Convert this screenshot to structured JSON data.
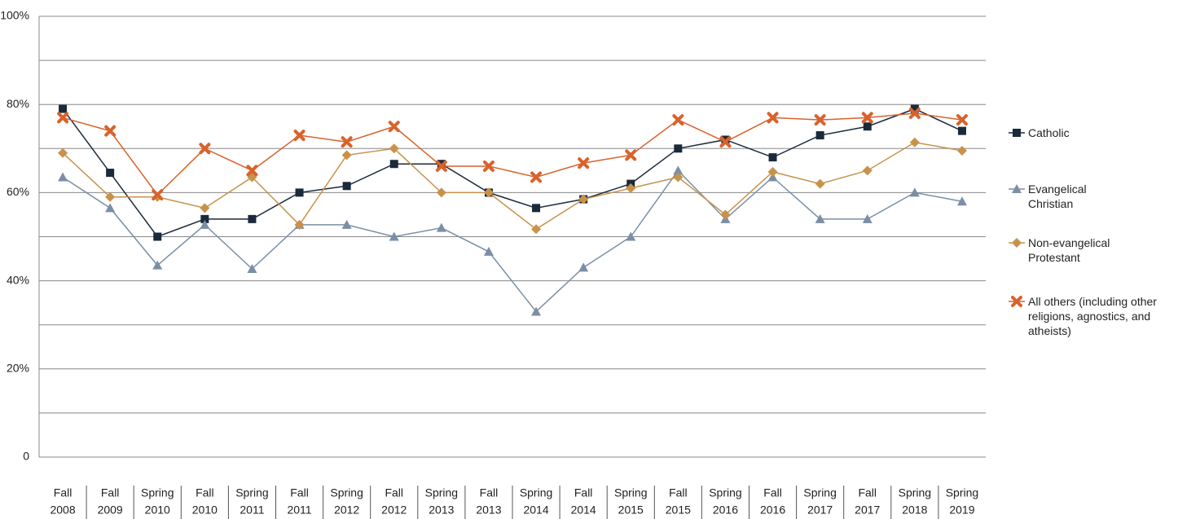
{
  "chart_data": {
    "type": "line",
    "categories": [
      [
        "Fall",
        "2008"
      ],
      [
        "Fall",
        "2009"
      ],
      [
        "Spring",
        "2010"
      ],
      [
        "Fall",
        "2010"
      ],
      [
        "Spring",
        "2011"
      ],
      [
        "Fall",
        "2011"
      ],
      [
        "Spring",
        "2012"
      ],
      [
        "Fall",
        "2012"
      ],
      [
        "Spring",
        "2013"
      ],
      [
        "Fall",
        "2013"
      ],
      [
        "Spring",
        "2014"
      ],
      [
        "Fall",
        "2014"
      ],
      [
        "Spring",
        "2015"
      ],
      [
        "Fall",
        "2015"
      ],
      [
        "Spring",
        "2016"
      ],
      [
        "Fall",
        "2016"
      ],
      [
        "Spring",
        "2017"
      ],
      [
        "Fall",
        "2017"
      ],
      [
        "Spring",
        "2018"
      ],
      [
        "Spring",
        "2019"
      ]
    ],
    "series": [
      {
        "name": "Catholic",
        "color": "#1b2a3a",
        "marker": "square",
        "values": [
          79,
          64.5,
          50,
          54,
          54,
          60,
          61.5,
          66.5,
          66.5,
          60,
          56.5,
          58.5,
          62,
          70,
          72,
          68,
          73,
          75,
          79,
          74
        ]
      },
      {
        "name": "Evangelical Christian",
        "color": "#7a8fa6",
        "marker": "triangle",
        "values": [
          63.5,
          56.5,
          43.5,
          52.7,
          42.7,
          52.7,
          52.7,
          50,
          52,
          46.6,
          33,
          43,
          50,
          65,
          54,
          63.5,
          54,
          54,
          60,
          58
        ]
      },
      {
        "name": "Non-evangelical Protestant",
        "color": "#c8924a",
        "marker": "diamond",
        "values": [
          69,
          59,
          59,
          56.5,
          63.5,
          52.7,
          68.5,
          70,
          60,
          60,
          51.7,
          58.5,
          61,
          63.5,
          55,
          64.7,
          62,
          65,
          71.4,
          69.5
        ]
      },
      {
        "name": "All others (including other religions, agnostics, and atheists)",
        "color": "#d9622b",
        "marker": "cross",
        "values": [
          77,
          74,
          59.5,
          70,
          65,
          73,
          71.5,
          75,
          66,
          66,
          63.5,
          66.7,
          68.5,
          76.5,
          71.5,
          77,
          76.5,
          77,
          78,
          76.5
        ]
      }
    ],
    "ylim": [
      0,
      100
    ],
    "yticks": [
      0,
      {
        "value": 20,
        "label": "20%"
      },
      {
        "value": 40,
        "label": "40%"
      },
      {
        "value": 60,
        "label": "60%"
      },
      {
        "value": 80,
        "label": "80%"
      },
      {
        "value": 100,
        "label": "100%"
      }
    ],
    "minor_yticks": [
      10,
      30,
      50,
      70,
      90
    ],
    "grid": true,
    "legend": "right"
  }
}
